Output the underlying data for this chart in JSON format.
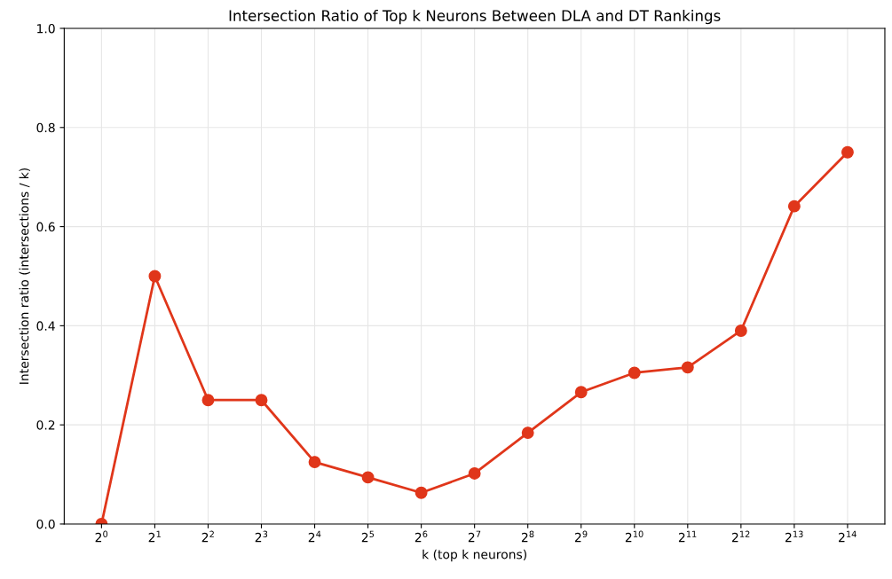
{
  "chart_data": {
    "type": "line",
    "title": "Intersection Ratio of Top k Neurons Between DLA and DT Rankings",
    "xlabel": "k (top k neurons)",
    "ylabel": "Intersection ratio (intersections / k)",
    "x": [
      1,
      2,
      4,
      8,
      16,
      32,
      64,
      128,
      256,
      512,
      1024,
      2048,
      4096,
      8192,
      16384
    ],
    "series": [
      {
        "color": "#e0361a",
        "values": [
          0,
          0.5,
          0.25,
          0.25,
          0.125,
          0.094,
          0.063,
          0.102,
          0.184,
          0.266,
          0.305,
          0.316,
          0.39,
          0.641,
          0.75
        ]
      }
    ],
    "log": "x",
    "xlim": [
      0.6156,
      26616
    ],
    "xticks": [
      {
        "value": 1,
        "label": "2$^{0}$"
      },
      {
        "value": 2,
        "label": "2$^{1}$"
      },
      {
        "value": 4,
        "label": "2$^{2}$"
      },
      {
        "value": 8,
        "label": "2$^{3}$"
      },
      {
        "value": 16,
        "label": "2$^{4}$"
      },
      {
        "value": 32,
        "label": "2$^{5}$"
      },
      {
        "value": 64,
        "label": "2$^{6}$"
      },
      {
        "value": 128,
        "label": "2$^{7}$"
      },
      {
        "value": 256,
        "label": "2$^{8}$"
      },
      {
        "value": 512,
        "label": "2$^{9}$"
      },
      {
        "value": 1024,
        "label": "2$^{10}$"
      },
      {
        "value": 2048,
        "label": "2$^{11}$"
      },
      {
        "value": 4096,
        "label": "2$^{12}$"
      },
      {
        "value": 8192,
        "label": "2$^{13}$"
      },
      {
        "value": 16384,
        "label": "2$^{14}$"
      }
    ],
    "ylim": [
      0,
      1
    ],
    "yticks": [
      {
        "value": 0,
        "label": "0.0"
      },
      0.2,
      0.4,
      0.6,
      0.8,
      {
        "value": 1,
        "label": "1.0"
      }
    ],
    "grid": true,
    "marker": "circle",
    "line_style": "solid"
  }
}
